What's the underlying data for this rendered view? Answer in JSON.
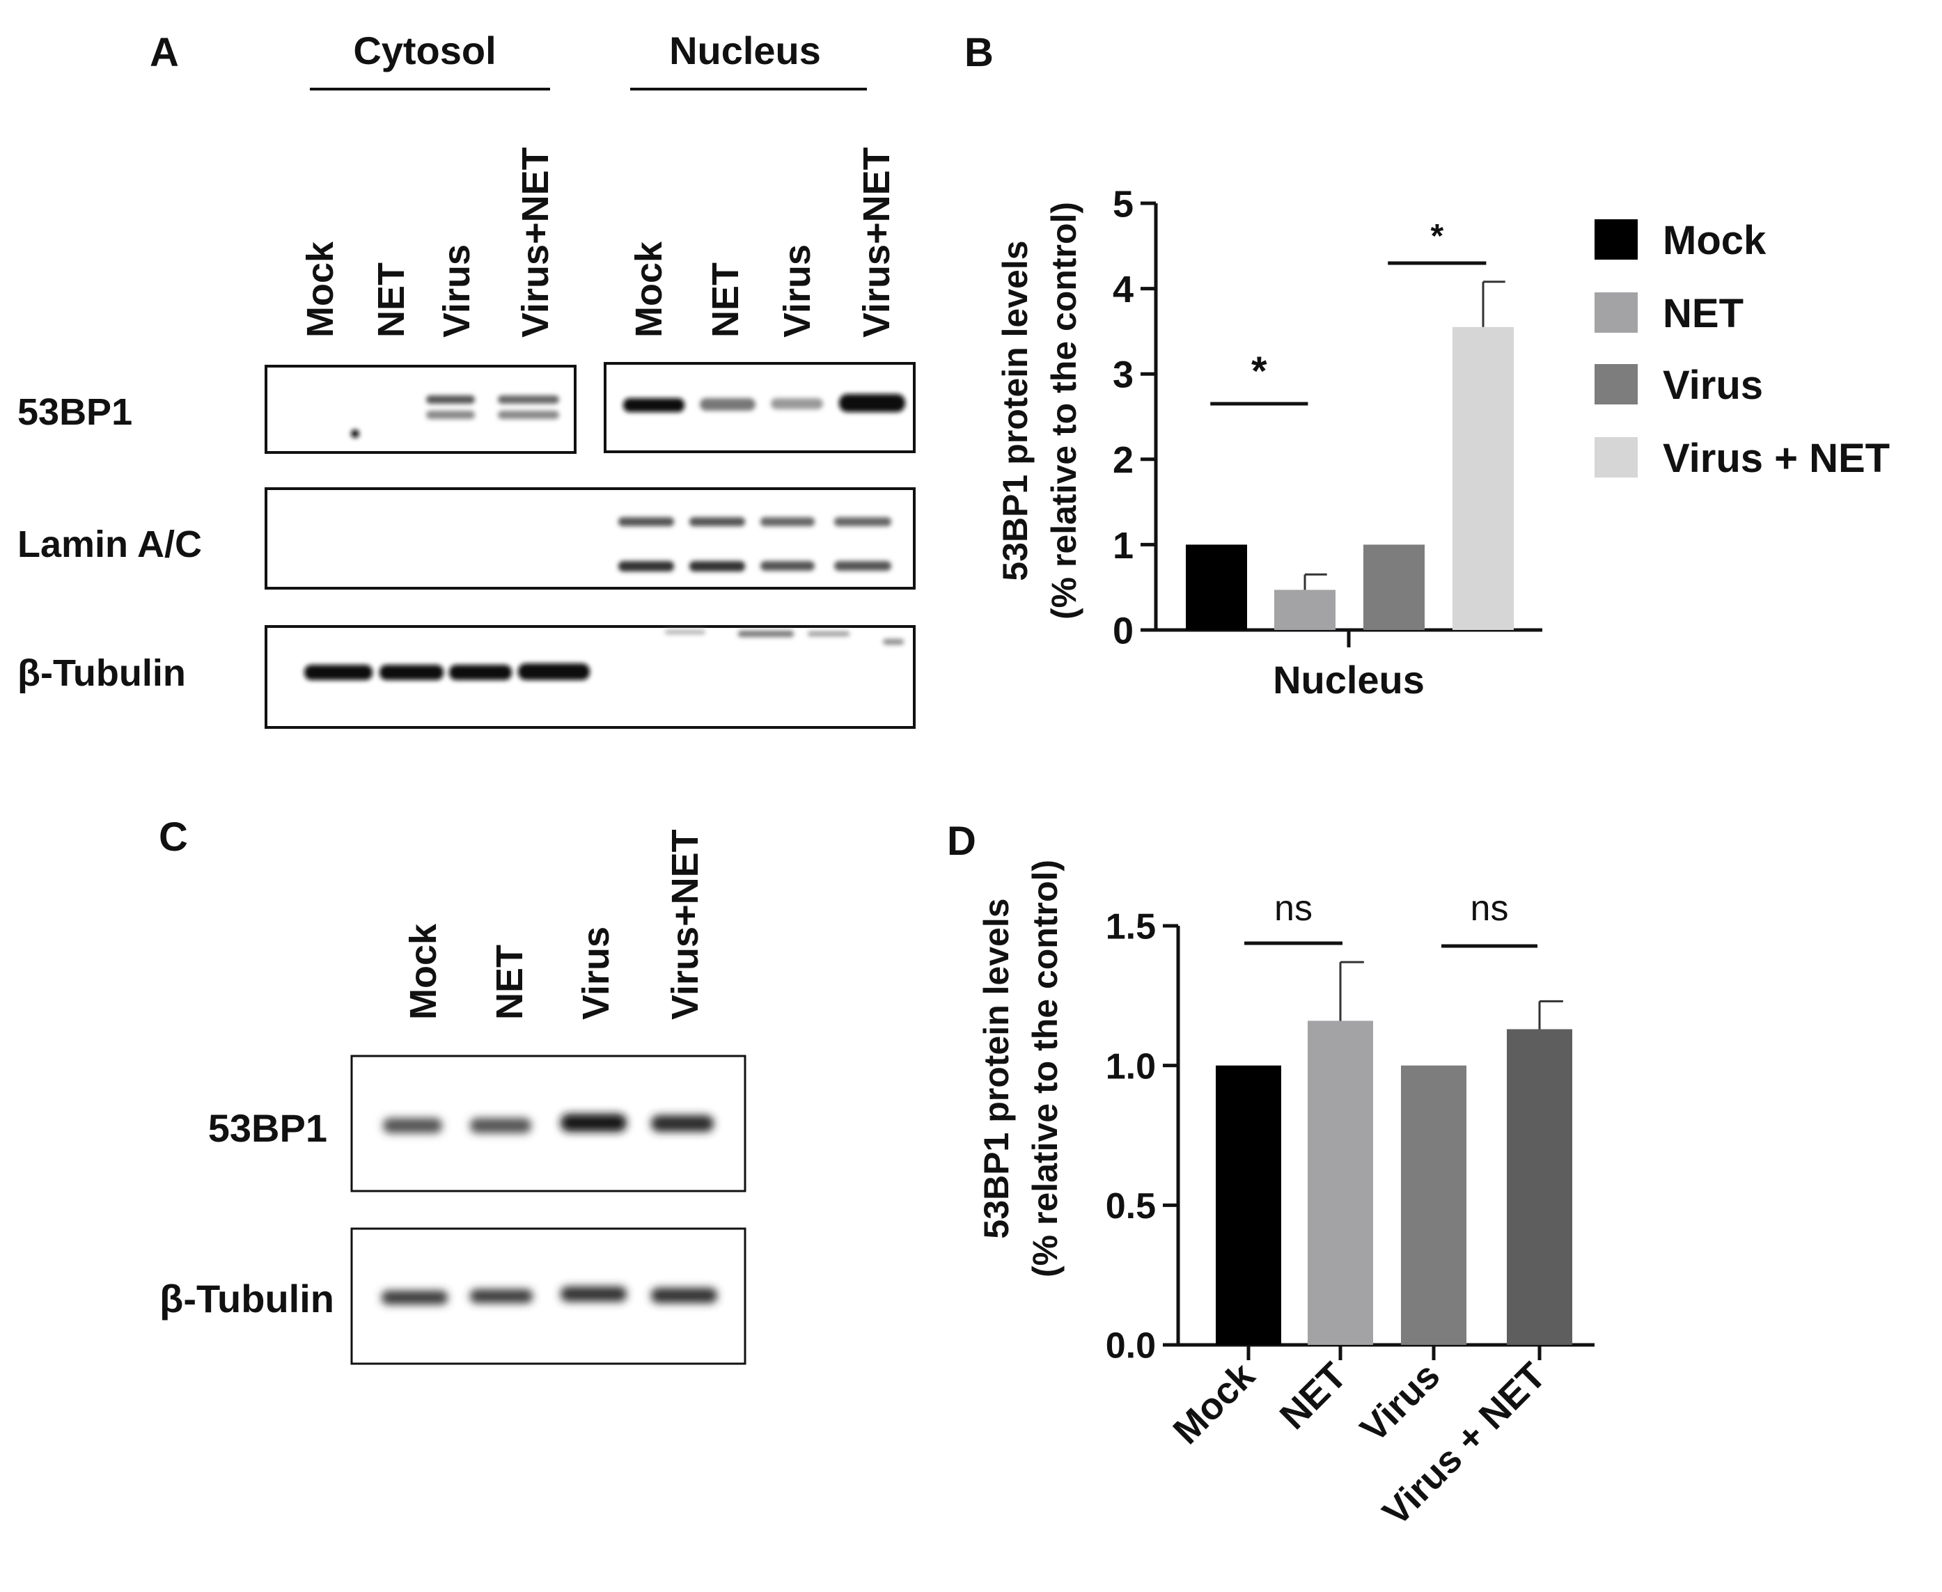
{
  "panel_labels": {
    "a": "A",
    "b": "B",
    "c": "C",
    "d": "D"
  },
  "panel_a": {
    "cytosol_label": "Cytosol",
    "nucleus_label": "Nucleus",
    "lanes": [
      "Mock",
      "NET",
      "Virus",
      "Virus+NET",
      "Mock",
      "NET",
      "Virus",
      "Virus+NET"
    ],
    "rows": [
      "53BP1",
      "Lamin A/C",
      "β-Tubulin"
    ]
  },
  "panel_c": {
    "lanes": [
      "Mock",
      "NET",
      "Virus",
      "Virus+NET"
    ],
    "rows": [
      "53BP1",
      "β-Tubulin"
    ]
  },
  "chart_data": [
    {
      "id": "B",
      "type": "bar",
      "title": "",
      "xlabel": "Nucleus",
      "ylabel_line1": "53BP1 protein levels",
      "ylabel_line2": "(% relative to the control)",
      "ylim": [
        0,
        5
      ],
      "yticks": [
        "0",
        "1",
        "2",
        "3",
        "4",
        "5"
      ],
      "categories": [
        "Mock",
        "NET",
        "Virus",
        "Virus + NET"
      ],
      "values": [
        1.0,
        0.47,
        1.0,
        3.55
      ],
      "errors": [
        0,
        0.18,
        0,
        0.53
      ],
      "colors": [
        "#000000",
        "#a3a3a5",
        "#7d7d7d",
        "#d6d6d6"
      ],
      "legend": [
        "Mock",
        "NET",
        "Virus",
        "Virus + NET"
      ],
      "legend_position": "right",
      "significance": [
        {
          "between": [
            0,
            1
          ],
          "label": "*"
        },
        {
          "between": [
            2,
            3
          ],
          "label": "*"
        }
      ]
    },
    {
      "id": "D",
      "type": "bar",
      "title": "",
      "xlabel": "",
      "ylabel_line1": "53BP1 protein levels",
      "ylabel_line2": "(% relative to the control)",
      "ylim": [
        0,
        1.5
      ],
      "yticks": [
        "0.0",
        "0.5",
        "1.0",
        "1.5"
      ],
      "categories": [
        "Mock",
        "NET",
        "Virus",
        "Virus + NET"
      ],
      "values": [
        1.0,
        1.16,
        1.0,
        1.13
      ],
      "errors": [
        0,
        0.21,
        0,
        0.1
      ],
      "colors": [
        "#000000",
        "#a3a3a5",
        "#7d7d7d",
        "#5e5e5e"
      ],
      "significance": [
        {
          "between": [
            0,
            1
          ],
          "label": "ns"
        },
        {
          "between": [
            2,
            3
          ],
          "label": "ns"
        }
      ]
    }
  ]
}
